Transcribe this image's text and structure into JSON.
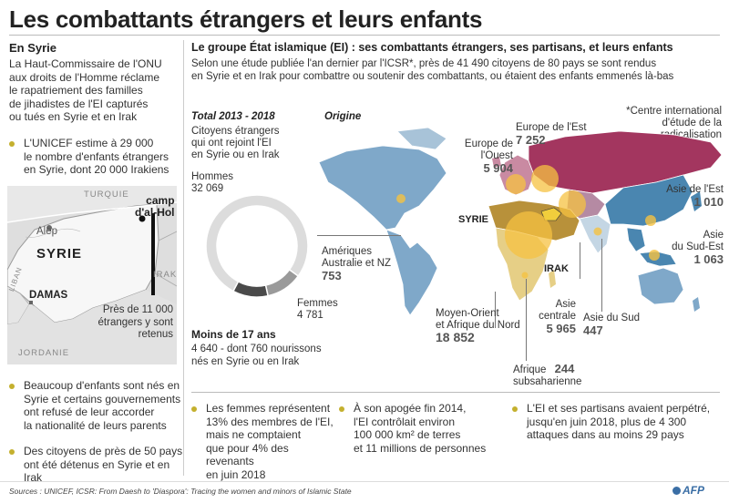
{
  "title": "Les combattants étrangers et leurs enfants",
  "syria": {
    "heading": "En Syrie",
    "intro": [
      "La Haut-Commissaire de l'ONU",
      "aux droits de l'Homme réclame",
      "le rapatriement des familles",
      "de jihadistes de l'EI capturés",
      "ou tués en Syrie et en Irak"
    ],
    "unicef": [
      "L'UNICEF estime à 29 000",
      "le nombre d'enfants étrangers",
      "en Syrie, dont 20 000 Irakiens"
    ],
    "map_labels": {
      "turkey": "TURQUIE",
      "aleppo": "Alep",
      "syria": "SYRIE",
      "lebanon": "LIBAN",
      "damascus": "DAMAS",
      "iraq": "IRAK",
      "jordan": "JORDANIE",
      "camp": [
        "camp",
        "d'al-Hol"
      ]
    },
    "camp_note": [
      "Près de 11 000",
      "étrangers y sont",
      "retenus"
    ],
    "bullets": [
      [
        "Beaucoup d'enfants sont nés en",
        "Syrie et certains gouvernements",
        "ont refusé de leur accorder",
        "la nationalité de leurs parents"
      ],
      [
        "Des citoyens de près de 50 pays",
        "ont été détenus en Syrie et en Irak"
      ]
    ]
  },
  "group": {
    "heading": "Le groupe État islamique (EI) : ses combattants étrangers, ses partisans, et leurs enfants",
    "subtitle": [
      "Selon une étude publiée l'an dernier par l'ICSR*, près de 41 490 citoyens de 80 pays se sont rendus",
      "en Syrie et en Irak pour combattre ou soutenir des combattants, ou étaient des enfants emmenés là-bas"
    ],
    "footnote": [
      "*Centre international",
      "d'étude de la",
      "radicalisation"
    ]
  },
  "total": {
    "heading": "Total 2013 - 2018",
    "desc": [
      "Citoyens étrangers",
      "qui ont rejoint l'EI",
      "en Syrie ou en Irak"
    ],
    "men_label": "Hommes",
    "men_value": "32 069",
    "women_label": "Femmes",
    "women_value": "4 781",
    "minors_label": "Moins de 17 ans",
    "minors_desc": [
      "4 640 - dont 760 nourissons",
      "nés en Syrie ou en Irak"
    ]
  },
  "donut_values": {
    "men": 32069,
    "women": 4781,
    "minors": 4640
  },
  "origin": {
    "heading": "Origine",
    "syria_label": "SYRIE",
    "iraq_label": "IRAK",
    "regions": [
      {
        "id": "europe-ouest",
        "name": [
          "Europe de l'Ouest"
        ],
        "value": "5 904"
      },
      {
        "id": "europe-est",
        "name": [
          "Europe de l'Est"
        ],
        "value": "7 252"
      },
      {
        "id": "asie-est",
        "name": [
          "Asie de l'Est"
        ],
        "value": "1 010"
      },
      {
        "id": "asie-sud-est",
        "name": [
          "Asie",
          "du Sud-Est"
        ],
        "value": "1 063"
      },
      {
        "id": "ameriques",
        "name": [
          "Amériques",
          "Australie et NZ"
        ],
        "value": "753"
      },
      {
        "id": "moyen-orient",
        "name": [
          "Moyen-Orient",
          "et Afrique du Nord"
        ],
        "value": "18 852"
      },
      {
        "id": "asie-centrale",
        "name": [
          "Asie",
          "centrale"
        ],
        "value": "5 965"
      },
      {
        "id": "asie-sud",
        "name": [
          "Asie du Sud"
        ],
        "value": "447"
      },
      {
        "id": "afrique-sub",
        "name": [
          "Afrique",
          "subsaharienne"
        ],
        "value": "244"
      }
    ],
    "colors": {
      "europe_east": "#a3365f",
      "europe_west": "#c98aa2",
      "east_asia": "#4a86b0",
      "americas": "#7fa8c9",
      "mena": "#b8913a",
      "africa": "#e6cf86",
      "bubble": "#f5c242"
    }
  },
  "bottom_bullets": [
    [
      "Les femmes représentent",
      "13% des membres de l'EI,",
      "mais ne comptaient",
      "que pour 4% des revenants",
      "en juin 2018"
    ],
    [
      "À son apogée fin 2014,",
      "l'EI contrôlait environ",
      "100 000 km² de terres",
      "et 11 millions de personnes"
    ],
    [
      "L'EI et ses partisans avaient perpétré,",
      "jusqu'en juin 2018, plus de 4 300",
      "attaques dans au moins 29 pays"
    ]
  ],
  "footer": {
    "sources": "Sources : UNICEF, ICSR: From Daesh to 'Diaspora': Tracing the women and minors of Islamic State",
    "credit": "AFP"
  }
}
